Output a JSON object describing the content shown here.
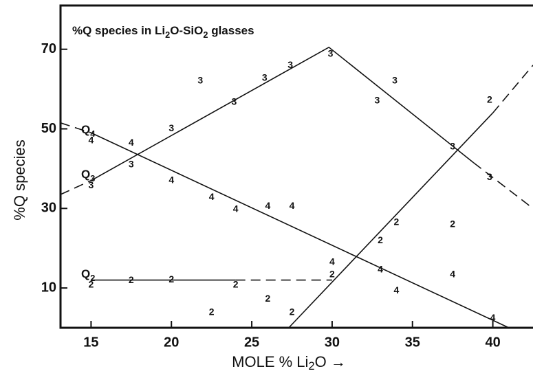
{
  "chart_data": {
    "type": "scatter",
    "title": "%Q species in Li2O-SiO2 glasses",
    "x_label": "MOLE % Li2O →",
    "y_label": "%Q species",
    "xlim": [
      13.1,
      42.5
    ],
    "ylim": [
      0,
      81
    ],
    "xticks": [
      15,
      20,
      25,
      30,
      35,
      40
    ],
    "yticks": [
      10,
      30,
      50,
      70
    ],
    "color": "#111111",
    "series": [
      {
        "name": "Q4",
        "marker": "4",
        "x": [
          15,
          17.5,
          20,
          22.5,
          24,
          26,
          27.5,
          30,
          33,
          34,
          37.5,
          40
        ],
        "values": [
          47,
          46.4,
          37,
          32.8,
          29.7,
          30.5,
          30.5,
          16.4,
          14.5,
          9.3,
          13.3,
          2.4
        ],
        "segments": [
          {
            "x": [
              13.1,
              15
            ],
            "values": [
              51.5,
              49
            ],
            "dashed": true
          },
          {
            "x": [
              15,
              41
            ],
            "values": [
              49,
              0
            ],
            "dashed": false
          }
        ]
      },
      {
        "name": "Q3",
        "marker": "3",
        "x": [
          15,
          17.5,
          20,
          21.8,
          23.9,
          25.8,
          27.4,
          29.9,
          32.8,
          33.9,
          37.5,
          39.8
        ],
        "values": [
          35.7,
          41,
          50,
          62,
          56.7,
          62.7,
          65.9,
          68.8,
          57,
          62,
          45.5,
          37.8
        ],
        "segments": [
          {
            "x": [
              13.1,
              15
            ],
            "values": [
              33.5,
              37
            ],
            "dashed": true
          },
          {
            "x": [
              15,
              29.8,
              38.8
            ],
            "values": [
              37,
              70.5,
              41.5
            ],
            "dashed": false
          },
          {
            "x": [
              38.8,
              42.5
            ],
            "values": [
              41.5,
              30
            ],
            "dashed": true
          }
        ]
      },
      {
        "name": "Q2",
        "marker": "2",
        "x": [
          15,
          17.5,
          20,
          24,
          26,
          22.5,
          27.5,
          30,
          33,
          34,
          37.5,
          39.8
        ],
        "values": [
          10.7,
          11.9,
          12,
          10.7,
          7.2,
          3.8,
          3.8,
          13.3,
          21.9,
          26.5,
          25.9,
          57.2
        ],
        "segments": [
          {
            "x": [
              15,
              24
            ],
            "values": [
              12,
              12
            ],
            "dashed": false
          },
          {
            "x": [
              24,
              30
            ],
            "values": [
              12,
              12
            ],
            "dashed": true
          },
          {
            "x": [
              27.3,
              40
            ],
            "values": [
              0,
              54
            ],
            "dashed": false
          },
          {
            "x": [
              40,
              42.5
            ],
            "values": [
              54,
              66
            ],
            "dashed": true
          }
        ]
      }
    ]
  }
}
